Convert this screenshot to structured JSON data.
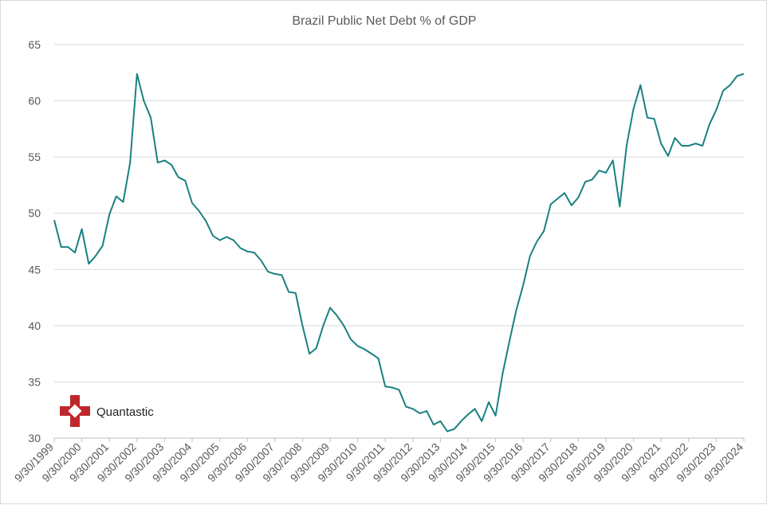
{
  "chart_data": {
    "type": "line",
    "title": "Brazil Public Net Debt % of GDP",
    "xlabel": "",
    "ylabel": "",
    "ylim": [
      30,
      65
    ],
    "yticks": [
      30,
      35,
      40,
      45,
      50,
      55,
      60,
      65
    ],
    "categories": [
      "9/30/1999",
      "9/30/2000",
      "9/30/2001",
      "9/30/2002",
      "9/30/2003",
      "9/30/2004",
      "9/30/2005",
      "9/30/2006",
      "9/30/2007",
      "9/30/2008",
      "9/30/2009",
      "9/30/2010",
      "9/30/2011",
      "9/30/2012",
      "9/30/2013",
      "9/30/2014",
      "9/30/2015",
      "9/30/2016",
      "9/30/2017",
      "9/30/2018",
      "9/30/2019",
      "9/30/2020",
      "9/30/2021",
      "9/30/2022",
      "9/30/2023",
      "9/30/2024"
    ],
    "color": "#1a8080",
    "series": [
      {
        "name": "Brazil Public Net Debt % of GDP",
        "x": [
          1999.0,
          1999.25,
          1999.5,
          1999.75,
          2000.0,
          2000.25,
          2000.5,
          2000.75,
          2001.0,
          2001.25,
          2001.5,
          2001.75,
          2002.0,
          2002.25,
          2002.5,
          2002.75,
          2003.0,
          2003.25,
          2003.5,
          2003.75,
          2004.0,
          2004.25,
          2004.5,
          2004.75,
          2005.0,
          2005.25,
          2005.5,
          2005.75,
          2006.0,
          2006.25,
          2006.5,
          2006.75,
          2007.0,
          2007.25,
          2007.5,
          2007.75,
          2008.0,
          2008.25,
          2008.5,
          2008.75,
          2009.0,
          2009.25,
          2009.5,
          2009.75,
          2010.0,
          2010.25,
          2010.5,
          2010.75,
          2011.0,
          2011.25,
          2011.5,
          2011.75,
          2012.0,
          2012.25,
          2012.5,
          2012.75,
          2013.0,
          2013.25,
          2013.5,
          2013.75,
          2014.0,
          2014.25,
          2014.5,
          2014.75,
          2015.0,
          2015.25,
          2015.5,
          2015.75,
          2016.0,
          2016.25,
          2016.5,
          2016.75,
          2017.0,
          2017.25,
          2017.5,
          2017.75,
          2018.0,
          2018.25,
          2018.5,
          2018.75,
          2019.0,
          2019.25,
          2019.5,
          2019.75,
          2020.0,
          2020.25,
          2020.5,
          2020.75,
          2021.0,
          2021.25,
          2021.5,
          2021.75,
          2022.0,
          2022.25,
          2022.5,
          2022.75,
          2023.0,
          2023.25,
          2023.5,
          2023.75,
          2024.0
        ],
        "values": [
          49.4,
          47.0,
          47.0,
          46.5,
          48.6,
          45.5,
          46.2,
          47.1,
          49.9,
          51.5,
          51.0,
          54.5,
          62.4,
          60.0,
          58.5,
          54.5,
          54.7,
          54.3,
          53.2,
          52.9,
          50.9,
          50.2,
          49.3,
          48.0,
          47.6,
          47.9,
          47.6,
          46.9,
          46.6,
          46.5,
          45.8,
          44.8,
          44.6,
          44.5,
          43.0,
          42.9,
          40.0,
          37.5,
          38.0,
          40.0,
          41.6,
          40.9,
          40.0,
          38.8,
          38.2,
          37.9,
          37.5,
          37.1,
          34.6,
          34.5,
          34.3,
          32.8,
          32.6,
          32.2,
          32.4,
          31.2,
          31.5,
          30.6,
          30.8,
          31.5,
          32.1,
          32.6,
          31.5,
          33.2,
          32.0,
          35.7,
          38.6,
          41.4,
          43.6,
          46.2,
          47.5,
          48.4,
          50.8,
          51.3,
          51.8,
          50.7,
          51.4,
          52.8,
          53.0,
          53.8,
          53.6,
          54.7,
          50.6,
          56.0,
          59.3,
          61.4,
          58.5,
          58.4,
          56.2,
          55.1,
          56.7,
          56.0,
          56.0,
          56.2,
          56.0,
          57.9,
          59.2,
          60.9,
          61.4,
          62.2,
          62.4
        ]
      }
    ]
  },
  "logo": {
    "name": "Quantastic"
  }
}
